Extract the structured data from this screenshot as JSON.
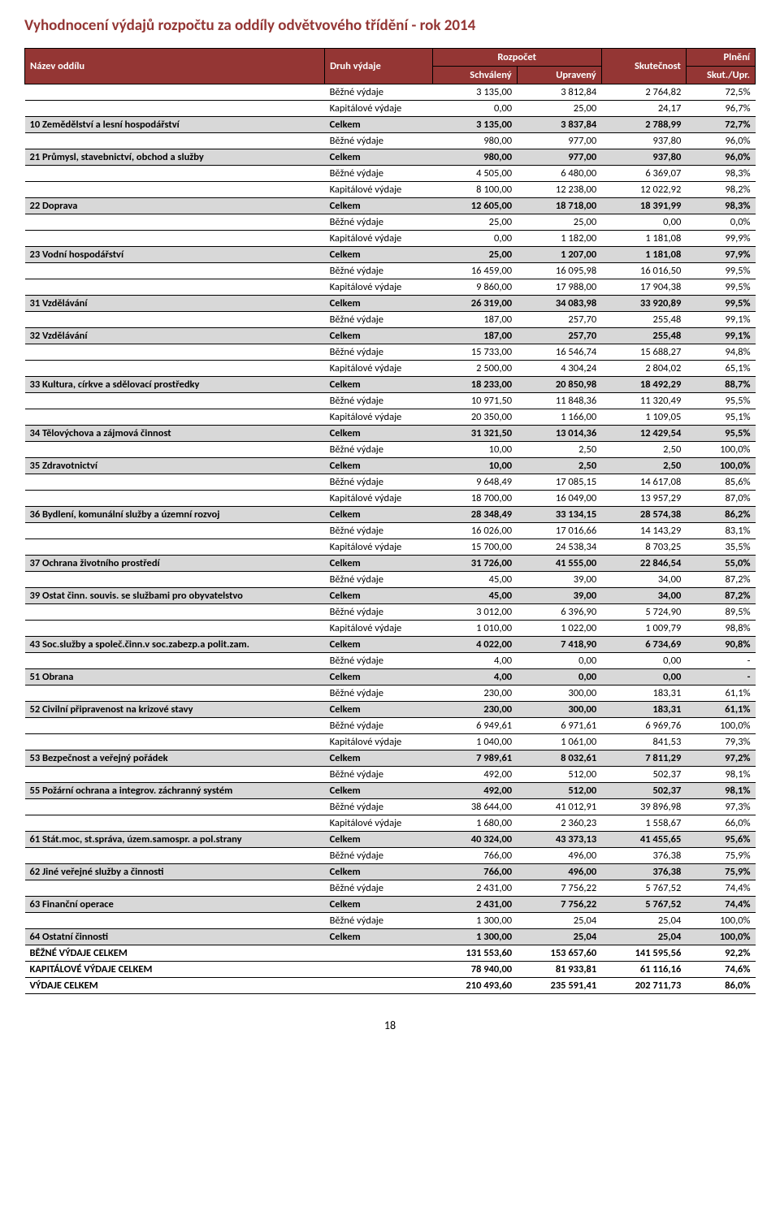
{
  "title": "Vyhodnocení výdajů rozpočtu za oddíly odvětvového třídění - rok 2014",
  "page_number": "18",
  "header": {
    "col1": "Název oddílu",
    "col2": "Druh výdaje",
    "rozpocet": "Rozpočet",
    "schvaleny": "Schválený",
    "upraveny": "Upravený",
    "skutecnost": "Skutečnost",
    "plneni": "Plnění",
    "skut_upr": "Skut./Upr."
  },
  "rows": [
    {
      "name": "",
      "type": "Běžné výdaje",
      "c1": "3 135,00",
      "c2": "3 812,84",
      "c3": "2 764,82",
      "c4": "72,5%",
      "celkem": false,
      "bold": false
    },
    {
      "name": "",
      "type": "Kapitálové výdaje",
      "c1": "0,00",
      "c2": "25,00",
      "c3": "24,17",
      "c4": "96,7%",
      "celkem": false,
      "bold": false
    },
    {
      "name": "10 Zemědělství a lesní hospodářství",
      "type": "Celkem",
      "c1": "3 135,00",
      "c2": "3 837,84",
      "c3": "2 788,99",
      "c4": "72,7%",
      "celkem": true,
      "bold": true
    },
    {
      "name": "",
      "type": "Běžné výdaje",
      "c1": "980,00",
      "c2": "977,00",
      "c3": "937,80",
      "c4": "96,0%",
      "celkem": false,
      "bold": false
    },
    {
      "name": "21 Průmysl, stavebnictví, obchod a služby",
      "type": "Celkem",
      "c1": "980,00",
      "c2": "977,00",
      "c3": "937,80",
      "c4": "96,0%",
      "celkem": true,
      "bold": true
    },
    {
      "name": "",
      "type": "Běžné výdaje",
      "c1": "4 505,00",
      "c2": "6 480,00",
      "c3": "6 369,07",
      "c4": "98,3%",
      "celkem": false,
      "bold": false
    },
    {
      "name": "",
      "type": "Kapitálové výdaje",
      "c1": "8 100,00",
      "c2": "12 238,00",
      "c3": "12 022,92",
      "c4": "98,2%",
      "celkem": false,
      "bold": false
    },
    {
      "name": "22 Doprava",
      "type": "Celkem",
      "c1": "12 605,00",
      "c2": "18 718,00",
      "c3": "18 391,99",
      "c4": "98,3%",
      "celkem": true,
      "bold": true
    },
    {
      "name": "",
      "type": "Běžné výdaje",
      "c1": "25,00",
      "c2": "25,00",
      "c3": "0,00",
      "c4": "0,0%",
      "celkem": false,
      "bold": false
    },
    {
      "name": "",
      "type": "Kapitálové výdaje",
      "c1": "0,00",
      "c2": "1 182,00",
      "c3": "1 181,08",
      "c4": "99,9%",
      "celkem": false,
      "bold": false
    },
    {
      "name": "23 Vodní hospodářství",
      "type": "Celkem",
      "c1": "25,00",
      "c2": "1 207,00",
      "c3": "1 181,08",
      "c4": "97,9%",
      "celkem": true,
      "bold": true
    },
    {
      "name": "",
      "type": "Běžné výdaje",
      "c1": "16 459,00",
      "c2": "16 095,98",
      "c3": "16 016,50",
      "c4": "99,5%",
      "celkem": false,
      "bold": false
    },
    {
      "name": "",
      "type": "Kapitálové výdaje",
      "c1": "9 860,00",
      "c2": "17 988,00",
      "c3": "17 904,38",
      "c4": "99,5%",
      "celkem": false,
      "bold": false
    },
    {
      "name": "31 Vzdělávání",
      "type": "Celkem",
      "c1": "26 319,00",
      "c2": "34 083,98",
      "c3": "33 920,89",
      "c4": "99,5%",
      "celkem": true,
      "bold": true
    },
    {
      "name": "",
      "type": "Běžné výdaje",
      "c1": "187,00",
      "c2": "257,70",
      "c3": "255,48",
      "c4": "99,1%",
      "celkem": false,
      "bold": false
    },
    {
      "name": "32 Vzdělávání",
      "type": "Celkem",
      "c1": "187,00",
      "c2": "257,70",
      "c3": "255,48",
      "c4": "99,1%",
      "celkem": true,
      "bold": true
    },
    {
      "name": "",
      "type": "Běžné výdaje",
      "c1": "15 733,00",
      "c2": "16 546,74",
      "c3": "15 688,27",
      "c4": "94,8%",
      "celkem": false,
      "bold": false
    },
    {
      "name": "",
      "type": "Kapitálové výdaje",
      "c1": "2 500,00",
      "c2": "4 304,24",
      "c3": "2 804,02",
      "c4": "65,1%",
      "celkem": false,
      "bold": false
    },
    {
      "name": "33 Kultura, církve a sdělovací prostředky",
      "type": "Celkem",
      "c1": "18 233,00",
      "c2": "20 850,98",
      "c3": "18 492,29",
      "c4": "88,7%",
      "celkem": true,
      "bold": true
    },
    {
      "name": "",
      "type": "Běžné výdaje",
      "c1": "10 971,50",
      "c2": "11 848,36",
      "c3": "11 320,49",
      "c4": "95,5%",
      "celkem": false,
      "bold": false
    },
    {
      "name": "",
      "type": "Kapitálové výdaje",
      "c1": "20 350,00",
      "c2": "1 166,00",
      "c3": "1 109,05",
      "c4": "95,1%",
      "celkem": false,
      "bold": false
    },
    {
      "name": "34 Tělovýchova a zájmová činnost",
      "type": "Celkem",
      "c1": "31 321,50",
      "c2": "13 014,36",
      "c3": "12 429,54",
      "c4": "95,5%",
      "celkem": true,
      "bold": true
    },
    {
      "name": "",
      "type": "Běžné výdaje",
      "c1": "10,00",
      "c2": "2,50",
      "c3": "2,50",
      "c4": "100,0%",
      "celkem": false,
      "bold": false
    },
    {
      "name": "35 Zdravotnictví",
      "type": "Celkem",
      "c1": "10,00",
      "c2": "2,50",
      "c3": "2,50",
      "c4": "100,0%",
      "celkem": true,
      "bold": true
    },
    {
      "name": "",
      "type": "Běžné výdaje",
      "c1": "9 648,49",
      "c2": "17 085,15",
      "c3": "14 617,08",
      "c4": "85,6%",
      "celkem": false,
      "bold": false
    },
    {
      "name": "",
      "type": "Kapitálové výdaje",
      "c1": "18 700,00",
      "c2": "16 049,00",
      "c3": "13 957,29",
      "c4": "87,0%",
      "celkem": false,
      "bold": false
    },
    {
      "name": "36 Bydlení, komunální služby a územní rozvoj",
      "type": "Celkem",
      "c1": "28 348,49",
      "c2": "33 134,15",
      "c3": "28 574,38",
      "c4": "86,2%",
      "celkem": true,
      "bold": true
    },
    {
      "name": "",
      "type": "Běžné výdaje",
      "c1": "16 026,00",
      "c2": "17 016,66",
      "c3": "14 143,29",
      "c4": "83,1%",
      "celkem": false,
      "bold": false
    },
    {
      "name": "",
      "type": "Kapitálové výdaje",
      "c1": "15 700,00",
      "c2": "24 538,34",
      "c3": "8 703,25",
      "c4": "35,5%",
      "celkem": false,
      "bold": false
    },
    {
      "name": "37 Ochrana životního prostředí",
      "type": "Celkem",
      "c1": "31 726,00",
      "c2": "41 555,00",
      "c3": "22 846,54",
      "c4": "55,0%",
      "celkem": true,
      "bold": true
    },
    {
      "name": "",
      "type": "Běžné výdaje",
      "c1": "45,00",
      "c2": "39,00",
      "c3": "34,00",
      "c4": "87,2%",
      "celkem": false,
      "bold": false
    },
    {
      "name": "39 Ostat činn. souvis. se službami pro obyvatelstvo",
      "type": "Celkem",
      "c1": "45,00",
      "c2": "39,00",
      "c3": "34,00",
      "c4": "87,2%",
      "celkem": true,
      "bold": true
    },
    {
      "name": "",
      "type": "Běžné výdaje",
      "c1": "3 012,00",
      "c2": "6 396,90",
      "c3": "5 724,90",
      "c4": "89,5%",
      "celkem": false,
      "bold": false
    },
    {
      "name": "",
      "type": "Kapitálové výdaje",
      "c1": "1 010,00",
      "c2": "1 022,00",
      "c3": "1 009,79",
      "c4": "98,8%",
      "celkem": false,
      "bold": false
    },
    {
      "name": "43 Soc.služby a společ.činn.v soc.zabezp.a polit.zam.",
      "type": "Celkem",
      "c1": "4 022,00",
      "c2": "7 418,90",
      "c3": "6 734,69",
      "c4": "90,8%",
      "celkem": true,
      "bold": true
    },
    {
      "name": "",
      "type": "Běžné výdaje",
      "c1": "4,00",
      "c2": "0,00",
      "c3": "0,00",
      "c4": "-",
      "celkem": false,
      "bold": false
    },
    {
      "name": "51 Obrana",
      "type": "Celkem",
      "c1": "4,00",
      "c2": "0,00",
      "c3": "0,00",
      "c4": "-",
      "celkem": true,
      "bold": true
    },
    {
      "name": "",
      "type": "Běžné výdaje",
      "c1": "230,00",
      "c2": "300,00",
      "c3": "183,31",
      "c4": "61,1%",
      "celkem": false,
      "bold": false
    },
    {
      "name": "52 Civilní připravenost na krizové stavy",
      "type": "Celkem",
      "c1": "230,00",
      "c2": "300,00",
      "c3": "183,31",
      "c4": "61,1%",
      "celkem": true,
      "bold": true
    },
    {
      "name": "",
      "type": "Běžné výdaje",
      "c1": "6 949,61",
      "c2": "6 971,61",
      "c3": "6 969,76",
      "c4": "100,0%",
      "celkem": false,
      "bold": false
    },
    {
      "name": "",
      "type": "Kapitálové výdaje",
      "c1": "1 040,00",
      "c2": "1 061,00",
      "c3": "841,53",
      "c4": "79,3%",
      "celkem": false,
      "bold": false
    },
    {
      "name": "53 Bezpečnost a veřejný pořádek",
      "type": "Celkem",
      "c1": "7 989,61",
      "c2": "8 032,61",
      "c3": "7 811,29",
      "c4": "97,2%",
      "celkem": true,
      "bold": true
    },
    {
      "name": "",
      "type": "Běžné výdaje",
      "c1": "492,00",
      "c2": "512,00",
      "c3": "502,37",
      "c4": "98,1%",
      "celkem": false,
      "bold": false
    },
    {
      "name": "55 Požární ochrana a integrov. záchranný systém",
      "type": "Celkem",
      "c1": "492,00",
      "c2": "512,00",
      "c3": "502,37",
      "c4": "98,1%",
      "celkem": true,
      "bold": true
    },
    {
      "name": "",
      "type": "Běžné výdaje",
      "c1": "38 644,00",
      "c2": "41 012,91",
      "c3": "39 896,98",
      "c4": "97,3%",
      "celkem": false,
      "bold": false
    },
    {
      "name": "",
      "type": "Kapitálové výdaje",
      "c1": "1 680,00",
      "c2": "2 360,23",
      "c3": "1 558,67",
      "c4": "66,0%",
      "celkem": false,
      "bold": false
    },
    {
      "name": "61 Stát.moc, st.správa, územ.samospr. a pol.strany",
      "type": "Celkem",
      "c1": "40 324,00",
      "c2": "43 373,13",
      "c3": "41 455,65",
      "c4": "95,6%",
      "celkem": true,
      "bold": true
    },
    {
      "name": "",
      "type": "Běžné výdaje",
      "c1": "766,00",
      "c2": "496,00",
      "c3": "376,38",
      "c4": "75,9%",
      "celkem": false,
      "bold": false
    },
    {
      "name": "62 Jiné veřejné služby a činnosti",
      "type": "Celkem",
      "c1": "766,00",
      "c2": "496,00",
      "c3": "376,38",
      "c4": "75,9%",
      "celkem": true,
      "bold": true
    },
    {
      "name": "",
      "type": "Běžné výdaje",
      "c1": "2 431,00",
      "c2": "7 756,22",
      "c3": "5 767,52",
      "c4": "74,4%",
      "celkem": false,
      "bold": false
    },
    {
      "name": "63 Finanční operace",
      "type": "Celkem",
      "c1": "2 431,00",
      "c2": "7 756,22",
      "c3": "5 767,52",
      "c4": "74,4%",
      "celkem": true,
      "bold": true
    },
    {
      "name": "",
      "type": "Běžné výdaje",
      "c1": "1 300,00",
      "c2": "25,04",
      "c3": "25,04",
      "c4": "100,0%",
      "celkem": false,
      "bold": false
    },
    {
      "name": "64 Ostatní činnosti",
      "type": "Celkem",
      "c1": "1 300,00",
      "c2": "25,04",
      "c3": "25,04",
      "c4": "100,0%",
      "celkem": true,
      "bold": true
    },
    {
      "name": "BĚŽNÉ VÝDAJE CELKEM",
      "type": "",
      "c1": "131 553,60",
      "c2": "153 657,60",
      "c3": "141 595,56",
      "c4": "92,2%",
      "celkem": false,
      "bold": true,
      "sum": true
    },
    {
      "name": "KAPITÁLOVÉ VÝDAJE CELKEM",
      "type": "",
      "c1": "78 940,00",
      "c2": "81 933,81",
      "c3": "61 116,16",
      "c4": "74,6%",
      "celkem": false,
      "bold": true,
      "sum": true
    },
    {
      "name": "VÝDAJE CELKEM",
      "type": "",
      "c1": "210 493,60",
      "c2": "235 591,41",
      "c3": "202 711,73",
      "c4": "86,0%",
      "celkem": false,
      "bold": true,
      "sum": true
    }
  ]
}
